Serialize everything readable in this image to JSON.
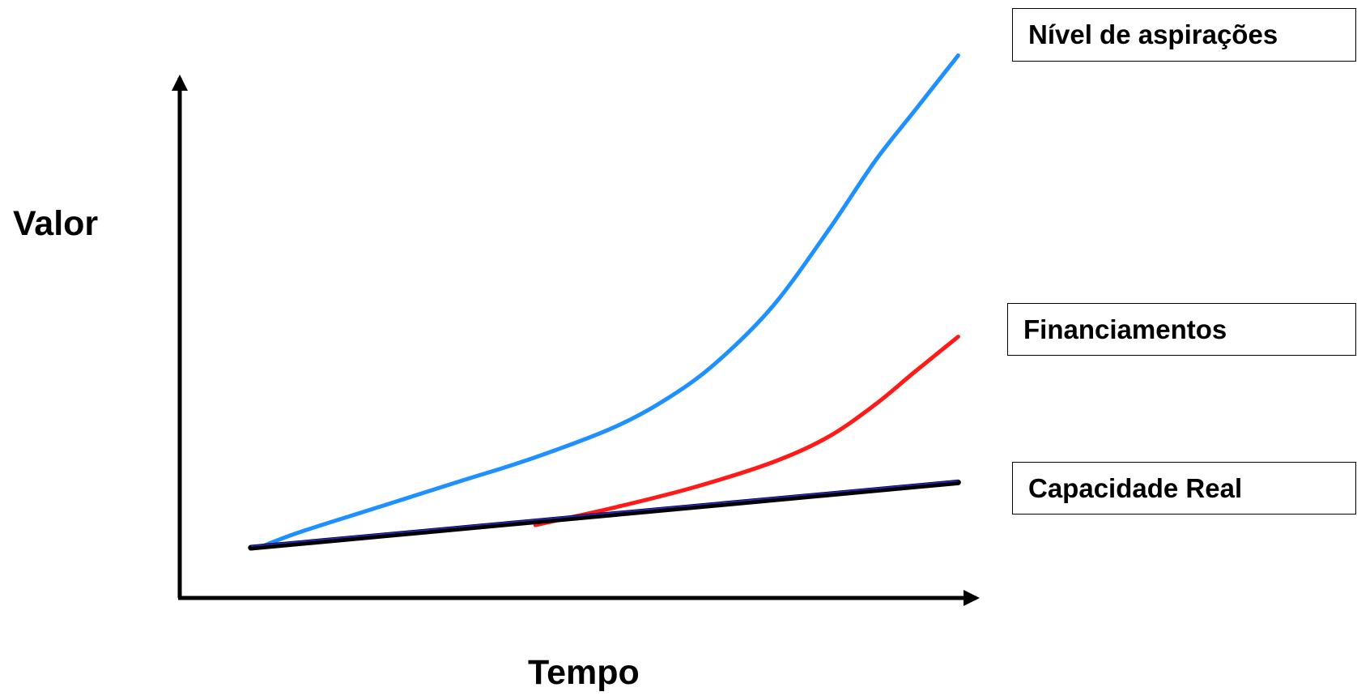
{
  "chart_data": {
    "type": "line",
    "title": "",
    "xlabel": "Tempo",
    "ylabel": "Valor",
    "xlim": [
      0,
      10
    ],
    "ylim": [
      0,
      10
    ],
    "grid": false,
    "axis_ticks": false,
    "legend_position": "right",
    "series": [
      {
        "name": "Nível de aspirações",
        "color": "#1e90ff",
        "x": [
          1.0,
          1.5,
          2.5,
          3.5,
          4.5,
          5.5,
          6.2,
          6.8,
          7.5,
          8.2,
          8.8,
          9.3,
          9.85
        ],
        "y": [
          1.0,
          1.3,
          1.8,
          2.3,
          2.8,
          3.4,
          4.0,
          4.7,
          5.8,
          7.3,
          8.7,
          9.7,
          10.8
        ]
      },
      {
        "name": "Financiamentos",
        "color": "#ff1a1a",
        "x": [
          4.5,
          5.5,
          6.5,
          7.5,
          8.2,
          8.8,
          9.3,
          9.85
        ],
        "y": [
          1.45,
          1.8,
          2.2,
          2.7,
          3.2,
          3.85,
          4.5,
          5.2
        ]
      },
      {
        "name": "Capacidade Real",
        "color": "#000000",
        "x": [
          0.9,
          9.85
        ],
        "y": [
          1.0,
          2.3
        ]
      }
    ]
  }
}
